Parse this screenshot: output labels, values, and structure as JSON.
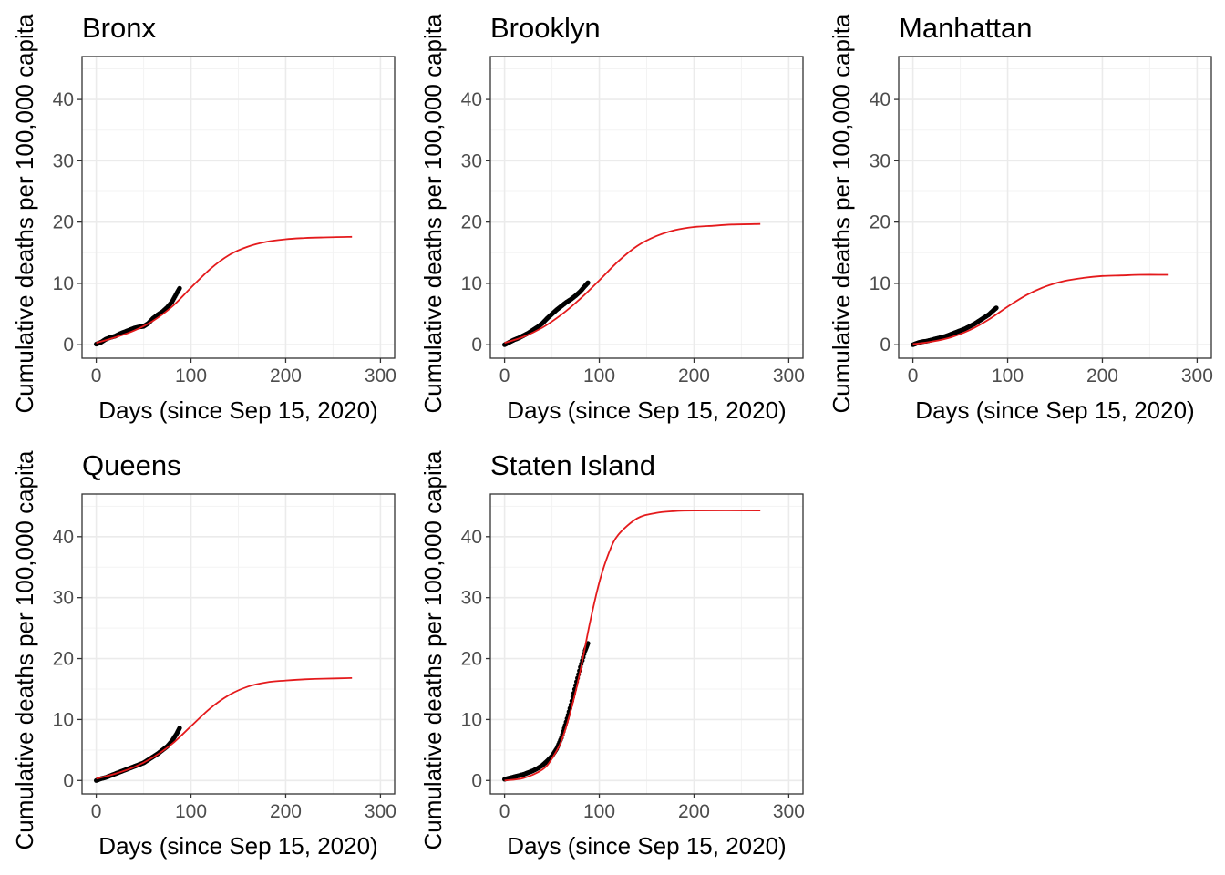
{
  "chart_data": [
    {
      "type": "scatter",
      "title": "Bronx",
      "xlabel": "Days (since Sep 15, 2020)",
      "ylabel": "Cumulative deaths per 100,000 capita",
      "xlim": [
        -15,
        315
      ],
      "ylim": [
        -2.2,
        47
      ],
      "xticks": [
        0,
        100,
        200,
        300
      ],
      "yticks": [
        0,
        10,
        20,
        30,
        40
      ],
      "grid": true,
      "series": [
        {
          "kind": "points",
          "color": "#000000",
          "x": [
            0,
            5,
            10,
            15,
            20,
            25,
            30,
            35,
            40,
            45,
            50,
            55,
            60,
            65,
            70,
            75,
            80,
            85,
            88
          ],
          "y": [
            0.1,
            0.4,
            0.9,
            1.2,
            1.4,
            1.8,
            2.1,
            2.4,
            2.7,
            2.9,
            3.0,
            3.5,
            4.3,
            4.9,
            5.4,
            6.1,
            7.0,
            8.4,
            9.2
          ]
        },
        {
          "kind": "line",
          "color": "#e41a1c",
          "x": [
            0,
            20,
            40,
            60,
            80,
            100,
            120,
            140,
            160,
            180,
            200,
            220,
            240,
            270
          ],
          "y": [
            0.3,
            1.2,
            2.3,
            3.9,
            6.2,
            9.3,
            12.3,
            14.6,
            16.0,
            16.8,
            17.2,
            17.4,
            17.5,
            17.6
          ]
        }
      ]
    },
    {
      "type": "scatter",
      "title": "Brooklyn",
      "xlabel": "Days (since Sep 15, 2020)",
      "ylabel": "Cumulative deaths per 100,000 capita",
      "xlim": [
        -15,
        315
      ],
      "ylim": [
        -2.2,
        47
      ],
      "xticks": [
        0,
        100,
        200,
        300
      ],
      "yticks": [
        0,
        10,
        20,
        30,
        40
      ],
      "grid": true,
      "series": [
        {
          "kind": "points",
          "color": "#000000",
          "x": [
            0,
            5,
            10,
            15,
            20,
            25,
            30,
            35,
            40,
            45,
            50,
            55,
            60,
            65,
            70,
            75,
            80,
            85,
            88
          ],
          "y": [
            0.0,
            0.4,
            0.8,
            1.1,
            1.5,
            1.9,
            2.4,
            2.9,
            3.5,
            4.3,
            5.0,
            5.7,
            6.3,
            6.9,
            7.4,
            8.0,
            8.7,
            9.6,
            10.1
          ]
        },
        {
          "kind": "line",
          "color": "#e41a1c",
          "x": [
            0,
            20,
            40,
            60,
            80,
            100,
            120,
            140,
            160,
            180,
            200,
            220,
            240,
            270
          ],
          "y": [
            0.3,
            1.3,
            2.8,
            4.9,
            7.5,
            10.5,
            13.6,
            16.1,
            17.7,
            18.7,
            19.2,
            19.4,
            19.6,
            19.7
          ]
        }
      ]
    },
    {
      "type": "scatter",
      "title": "Manhattan",
      "xlabel": "Days (since Sep 15, 2020)",
      "ylabel": "Cumulative deaths per 100,000 capita",
      "xlim": [
        -15,
        315
      ],
      "ylim": [
        -2.2,
        47
      ],
      "xticks": [
        0,
        100,
        200,
        300
      ],
      "yticks": [
        0,
        10,
        20,
        30,
        40
      ],
      "grid": true,
      "series": [
        {
          "kind": "points",
          "color": "#000000",
          "x": [
            0,
            5,
            10,
            15,
            20,
            25,
            30,
            35,
            40,
            45,
            50,
            55,
            60,
            65,
            70,
            75,
            80,
            85,
            88
          ],
          "y": [
            0.0,
            0.3,
            0.5,
            0.6,
            0.8,
            1.0,
            1.2,
            1.4,
            1.7,
            2.0,
            2.3,
            2.6,
            3.0,
            3.4,
            3.9,
            4.4,
            4.9,
            5.6,
            6.0
          ]
        },
        {
          "kind": "line",
          "color": "#e41a1c",
          "x": [
            0,
            20,
            40,
            60,
            80,
            100,
            120,
            140,
            160,
            180,
            200,
            220,
            240,
            270
          ],
          "y": [
            0.1,
            0.5,
            1.2,
            2.4,
            4.1,
            6.2,
            8.1,
            9.5,
            10.4,
            10.9,
            11.2,
            11.3,
            11.4,
            11.4
          ]
        }
      ]
    },
    {
      "type": "scatter",
      "title": "Queens",
      "xlabel": "Days (since Sep 15, 2020)",
      "ylabel": "Cumulative deaths per 100,000 capita",
      "xlim": [
        -15,
        315
      ],
      "ylim": [
        -2.2,
        47
      ],
      "xticks": [
        0,
        100,
        200,
        300
      ],
      "yticks": [
        0,
        10,
        20,
        30,
        40
      ],
      "grid": true,
      "series": [
        {
          "kind": "points",
          "color": "#000000",
          "x": [
            0,
            5,
            10,
            15,
            20,
            25,
            30,
            35,
            40,
            45,
            50,
            55,
            60,
            65,
            70,
            75,
            80,
            85,
            88
          ],
          "y": [
            0.0,
            0.3,
            0.5,
            0.8,
            1.1,
            1.4,
            1.7,
            2.0,
            2.3,
            2.6,
            2.9,
            3.4,
            3.9,
            4.4,
            5.0,
            5.6,
            6.5,
            7.7,
            8.6
          ]
        },
        {
          "kind": "line",
          "color": "#e41a1c",
          "x": [
            0,
            20,
            40,
            60,
            80,
            100,
            120,
            140,
            160,
            180,
            200,
            220,
            240,
            270
          ],
          "y": [
            0.3,
            1.1,
            2.2,
            3.8,
            6.0,
            8.9,
            11.8,
            14.0,
            15.4,
            16.1,
            16.4,
            16.6,
            16.7,
            16.8
          ]
        }
      ]
    },
    {
      "type": "scatter",
      "title": "Staten Island",
      "xlabel": "Days (since Sep 15, 2020)",
      "ylabel": "Cumulative deaths per 100,000 capita",
      "xlim": [
        -15,
        315
      ],
      "ylim": [
        -2.2,
        47
      ],
      "xticks": [
        0,
        100,
        200,
        300
      ],
      "yticks": [
        0,
        10,
        20,
        30,
        40
      ],
      "grid": true,
      "series": [
        {
          "kind": "points",
          "color": "#000000",
          "x": [
            0,
            5,
            10,
            15,
            20,
            25,
            30,
            35,
            40,
            45,
            50,
            55,
            60,
            65,
            70,
            75,
            80,
            85,
            88
          ],
          "y": [
            0.2,
            0.4,
            0.6,
            0.8,
            1.0,
            1.3,
            1.6,
            2.0,
            2.5,
            3.2,
            4.0,
            5.2,
            7.0,
            9.6,
            12.4,
            15.6,
            18.6,
            21.3,
            22.5
          ]
        },
        {
          "kind": "line",
          "color": "#e41a1c",
          "x": [
            0,
            20,
            40,
            50,
            60,
            70,
            80,
            90,
            100,
            110,
            120,
            140,
            160,
            180,
            200,
            270
          ],
          "y": [
            0.0,
            0.4,
            1.8,
            3.6,
            6.5,
            11.5,
            18.0,
            25.8,
            32.5,
            37.3,
            40.3,
            43.0,
            43.9,
            44.2,
            44.3,
            44.3
          ]
        }
      ]
    }
  ]
}
